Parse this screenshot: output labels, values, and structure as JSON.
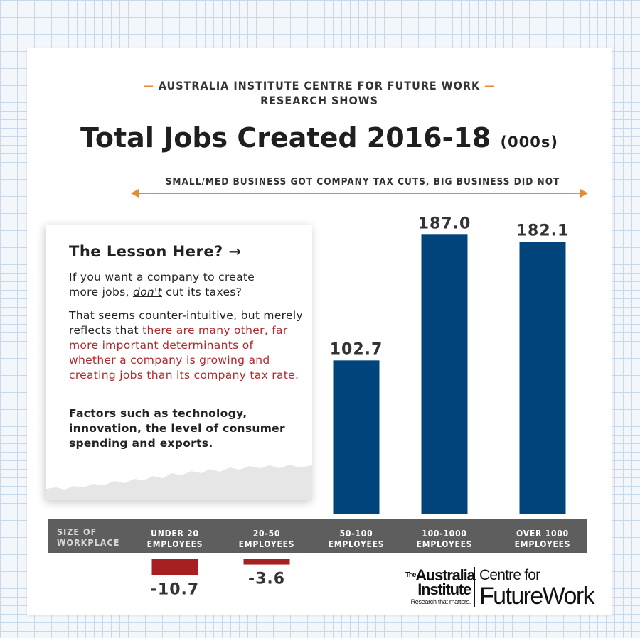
{
  "header": {
    "kicker_line1": "AUSTRALIA INSTITUTE CENTRE FOR FUTURE WORK",
    "kicker_line2": "RESEARCH SHOWS",
    "title_main": "Total Jobs Created 2016-18",
    "title_unit": "(000s)",
    "dash_color": "#e88a2e"
  },
  "span_note": "SMALL/MED BUSINESS GOT COMPANY TAX CUTS, BIG BUSINESS DID NOT",
  "lesson": {
    "heading": "The Lesson Here? →",
    "p1_line1": "If you want a company to create",
    "p1_line2_pre": "more jobs, ",
    "p1_emph": "don't",
    "p1_line2_post": " cut its taxes?",
    "p2_plain": "That seems counter-intuitive, but merely reflects that ",
    "p2_red": "there are many other, far more important determinants of whether a company is growing and creating jobs than its company tax rate.",
    "p3": "Factors such as technology, innovation, the level of consumer spending and exports."
  },
  "chart_data": {
    "type": "bar",
    "title": "Total Jobs Created 2016-18",
    "unit_label": "(000s)",
    "axis_title": "SIZE OF WORKPLACE",
    "categories": [
      [
        "UNDER 20",
        "EMPLOYEES"
      ],
      [
        "20-50",
        "EMPLOYEES"
      ],
      [
        "50-100",
        "EMPLOYEES"
      ],
      [
        "100-1000",
        "EMPLOYEES"
      ],
      [
        "OVER 1000",
        "EMPLOYEES"
      ]
    ],
    "values": [
      -10.7,
      -3.6,
      102.7,
      187.0,
      182.1
    ],
    "value_labels": [
      "-10.7",
      "-3.6",
      "102.7",
      "187.0",
      "182.1"
    ],
    "positive_color": "#00447c",
    "negative_color": "#a81f23",
    "axis_band_color": "#5e5e5e"
  },
  "branding": {
    "ai_the": "The",
    "ai_line1": "Australia",
    "ai_line2": "Institute",
    "ai_tagline": "Research that matters.",
    "cfw_line1": "Centre for",
    "cfw_line2": "FutureWork"
  }
}
